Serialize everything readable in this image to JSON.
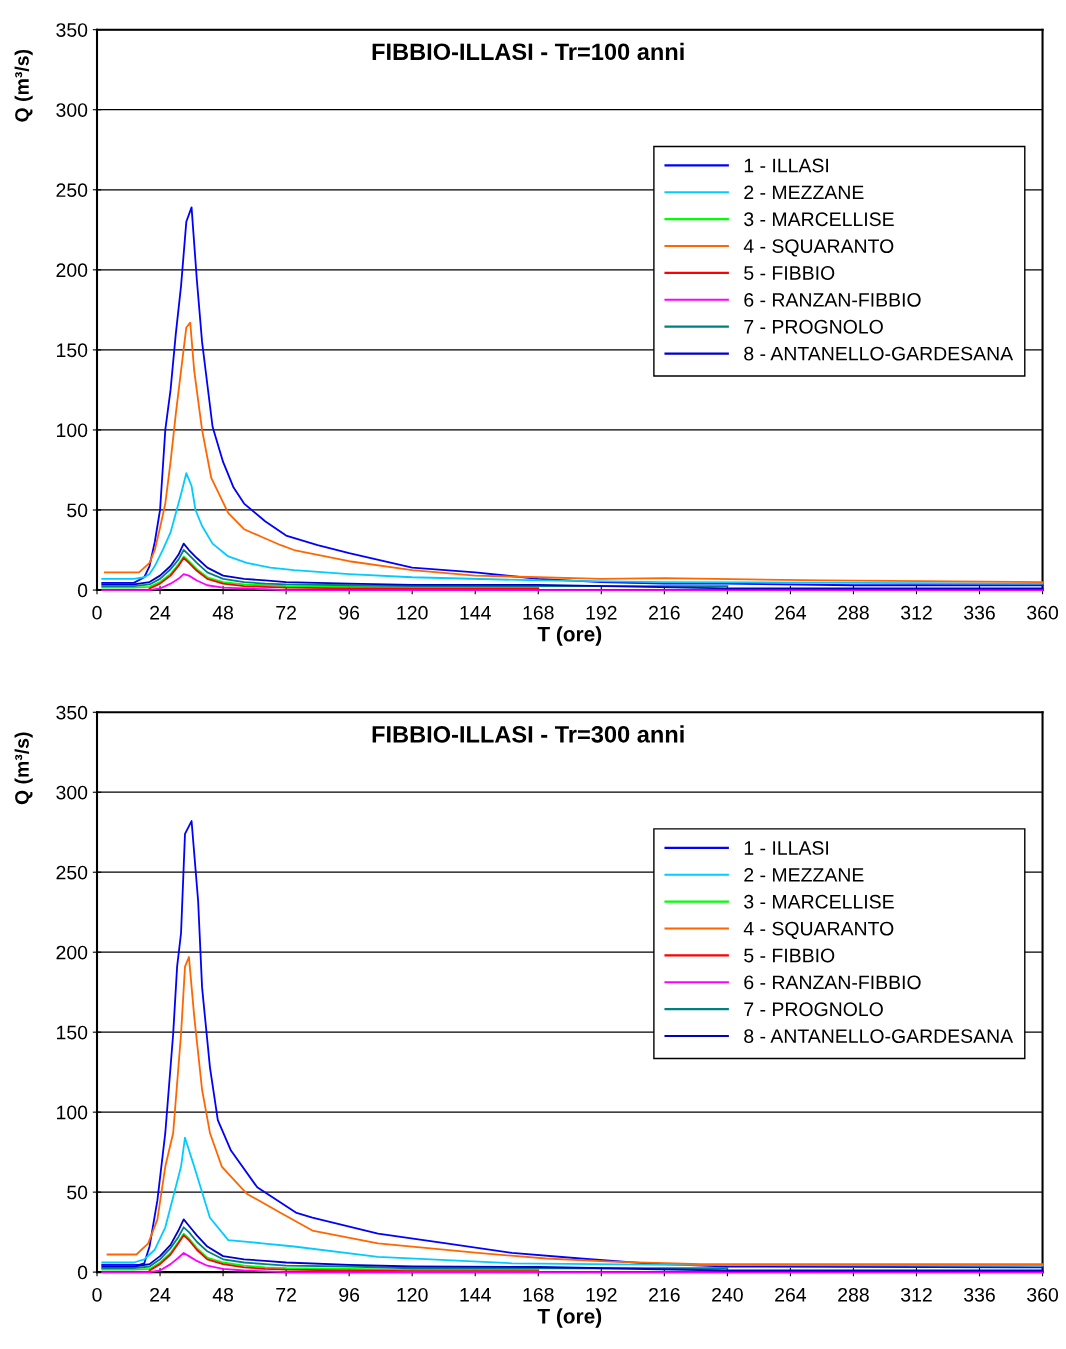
{
  "chart_data": [
    {
      "type": "line",
      "title": "FIBBIO-ILLASI - Tr=100 anni",
      "xlabel": "T (ore)",
      "ylabel": "Q (m³/s)",
      "xlim": [
        0,
        360
      ],
      "xticks": [
        0,
        24,
        48,
        72,
        96,
        120,
        144,
        168,
        192,
        216,
        240,
        264,
        288,
        312,
        336,
        360
      ],
      "ylim": [
        0,
        350
      ],
      "yticks": [
        0,
        50,
        100,
        150,
        200,
        250,
        300,
        350
      ],
      "grid": "y",
      "legend": "top right",
      "marker": "none",
      "line_style": "solid",
      "series": [
        {
          "name": "1 - ILLASI",
          "color": "#0000ff",
          "x": [
            2,
            14,
            18,
            20,
            22,
            24,
            26,
            28,
            30,
            32,
            34,
            36,
            38,
            40,
            44,
            48,
            52,
            56,
            64,
            72,
            84,
            96,
            120,
            144,
            168,
            192,
            216,
            240,
            288,
            360
          ],
          "values": [
            4.5,
            4.5,
            8,
            15,
            30,
            50,
            100,
            125,
            160,
            190,
            230,
            239,
            194,
            155,
            102,
            80,
            64,
            54,
            43,
            34,
            28,
            23,
            14,
            11,
            7,
            5,
            4,
            4,
            3,
            3
          ]
        },
        {
          "name": "2 - MEZZANE",
          "color": "#00ccff",
          "x": [
            2,
            14,
            18,
            20,
            22,
            25,
            28,
            30,
            32,
            34,
            36,
            37.5,
            40,
            44,
            50,
            57,
            66,
            75,
            96,
            120,
            168,
            216,
            360
          ],
          "values": [
            7,
            7,
            8,
            10,
            15,
            25,
            36,
            48,
            60,
            73,
            65,
            50,
            40,
            29,
            21,
            17,
            14,
            12.5,
            10,
            8,
            6,
            5,
            4
          ]
        },
        {
          "name": "3 - MARCELLISE",
          "color": "#00ff00",
          "x": [
            2,
            14,
            20,
            24,
            28,
            31,
            33,
            35,
            38,
            42,
            48,
            56,
            64,
            72,
            96,
            120,
            168
          ],
          "values": [
            1.5,
            1.5,
            2,
            5,
            10,
            16,
            21,
            18,
            13,
            8,
            5,
            3.5,
            3,
            2.5,
            2,
            1.6,
            1.6
          ]
        },
        {
          "name": "4 - SQUARANTO",
          "color": "#ff6600",
          "x": [
            3,
            16,
            18,
            20,
            22,
            24,
            26,
            28,
            30,
            32,
            34,
            35.5,
            37,
            40,
            43.5,
            50,
            56,
            63,
            70,
            75,
            96,
            120,
            144,
            168,
            192,
            216,
            276,
            360
          ],
          "values": [
            11,
            11,
            14,
            17,
            25,
            39,
            54,
            80,
            110,
            137,
            164,
            167,
            137,
            100,
            70,
            48,
            38,
            33,
            28,
            25,
            18,
            12.5,
            9,
            8,
            7,
            7.5,
            6,
            5
          ]
        },
        {
          "name": "5 - FIBBIO",
          "color": "#ff0000",
          "x": [
            20,
            24,
            28,
            31,
            33,
            35,
            38,
            42,
            48,
            56,
            64,
            72,
            96,
            120,
            168
          ],
          "values": [
            1,
            4,
            9,
            15,
            20,
            17,
            12,
            7,
            4,
            2.5,
            2,
            1.5,
            1,
            0.8,
            0.8
          ]
        },
        {
          "name": "6 - RANZAN-FIBBIO",
          "color": "#ff00ff",
          "x": [
            2,
            14,
            20,
            24,
            28,
            31,
            33,
            35,
            38,
            42,
            48,
            56,
            64,
            72,
            96,
            120,
            168,
            240,
            360
          ],
          "values": [
            0,
            0,
            0,
            1,
            4,
            7,
            10,
            9,
            6,
            3,
            1.5,
            1,
            0.5,
            0,
            0,
            0,
            0,
            0,
            0
          ]
        },
        {
          "name": "7 - PROGNOLO",
          "color": "#008080",
          "x": [
            2,
            14,
            20,
            24,
            28,
            31,
            33,
            35,
            38,
            42,
            48,
            56,
            64,
            72,
            96,
            120,
            168,
            240
          ],
          "values": [
            2.5,
            2.5,
            3.5,
            7,
            13,
            19,
            25,
            22,
            17,
            11,
            7,
            5,
            4,
            3.5,
            3,
            2.4,
            2.4,
            2.4
          ]
        },
        {
          "name": "8 - ANTANELLO-GARDESANA",
          "color": "#0000cc",
          "x": [
            2,
            14,
            20,
            24,
            28,
            31,
            33,
            35,
            38,
            42,
            48,
            56,
            64,
            72,
            96,
            120,
            168,
            240,
            360
          ],
          "values": [
            3.5,
            3.5,
            5,
            9,
            15,
            22,
            29,
            25,
            20,
            14,
            9,
            7,
            6,
            5,
            4,
            3.2,
            3.2,
            1,
            1
          ]
        }
      ]
    },
    {
      "type": "line",
      "title": "FIBBIO-ILLASI - Tr=300 anni",
      "xlabel": "T (ore)",
      "ylabel": "Q (m³/s)",
      "xlim": [
        0,
        360
      ],
      "xticks": [
        0,
        24,
        48,
        72,
        96,
        120,
        144,
        168,
        192,
        216,
        240,
        264,
        288,
        312,
        336,
        360
      ],
      "ylim": [
        0,
        350
      ],
      "yticks": [
        0,
        50,
        100,
        150,
        200,
        250,
        300,
        350
      ],
      "grid": "y",
      "legend": "top right",
      "marker": "none",
      "line_style": "solid",
      "series": [
        {
          "name": "1 - ILLASI",
          "color": "#0000ff",
          "x": [
            2,
            16,
            18,
            20,
            23,
            26,
            29,
            30.5,
            32,
            33.5,
            36,
            38.5,
            40,
            43,
            46,
            51,
            61,
            76,
            82,
            107,
            133,
            158,
            184,
            209,
            240,
            360
          ],
          "values": [
            4.5,
            4.5,
            5.5,
            16,
            45,
            87,
            149,
            191,
            212,
            274,
            282,
            232,
            178,
            128,
            95,
            76,
            53,
            37,
            34,
            24,
            18,
            12,
            8.5,
            5.5,
            3.5,
            3
          ]
        },
        {
          "name": "2 - MEZZANE",
          "color": "#00ccff",
          "x": [
            2,
            14,
            18,
            22,
            26,
            29,
            32,
            33.5,
            37,
            43,
            50,
            63,
            75,
            107,
            158,
            220,
            360
          ],
          "values": [
            6,
            6,
            8,
            14,
            28,
            47,
            66,
            84,
            66,
            34,
            20,
            18,
            16,
            9.5,
            5.5,
            4.5,
            4
          ]
        },
        {
          "name": "3 - MARCELLISE",
          "color": "#00ff00",
          "x": [
            2,
            14,
            20,
            24,
            28,
            31,
            33,
            35,
            38,
            42,
            48,
            56,
            64,
            72,
            96,
            120,
            168
          ],
          "values": [
            1.5,
            1.5,
            2,
            6,
            12,
            19,
            24,
            21,
            15,
            9,
            6,
            4,
            3,
            2.5,
            2,
            1.4,
            1.4
          ]
        },
        {
          "name": "4 - SQUARANTO",
          "color": "#ff6600",
          "x": [
            4,
            15,
            19.5,
            23,
            26,
            29,
            32,
            33.5,
            35,
            37,
            40,
            43,
            47.5,
            57,
            70,
            82,
            107,
            145,
            171,
            196,
            230,
            360
          ],
          "values": [
            11,
            11,
            18,
            33,
            66,
            87,
            149,
            191,
            197,
            160,
            114,
            87,
            66,
            49,
            37,
            26,
            18,
            12,
            8.5,
            6.5,
            5,
            5
          ]
        },
        {
          "name": "5 - FIBBIO",
          "color": "#ff0000",
          "x": [
            20,
            24,
            28,
            31,
            33,
            35,
            38,
            42,
            48,
            56,
            64,
            72,
            96,
            120,
            168
          ],
          "values": [
            1,
            5,
            11,
            18,
            23,
            20,
            14,
            8,
            5,
            3,
            2,
            1.5,
            1,
            0.6,
            0.6
          ]
        },
        {
          "name": "6 - RANZAN-FIBBIO",
          "color": "#ff00ff",
          "x": [
            2,
            14,
            20,
            24,
            28,
            31,
            33,
            35,
            38,
            42,
            48,
            56,
            64,
            72,
            96,
            120,
            168,
            240,
            360
          ],
          "values": [
            0,
            0,
            0,
            1,
            5,
            9,
            12,
            10,
            7,
            4,
            2,
            1,
            0.5,
            0,
            0,
            0,
            0,
            0,
            0
          ]
        },
        {
          "name": "7 - PROGNOLO",
          "color": "#008080",
          "x": [
            2,
            14,
            20,
            24,
            28,
            31,
            33,
            35,
            38,
            42,
            48,
            56,
            64,
            72,
            96,
            120,
            168,
            240
          ],
          "values": [
            2.5,
            2.5,
            3.5,
            8,
            15,
            22,
            28,
            25,
            19,
            13,
            8,
            6,
            5,
            4,
            3.5,
            2.4,
            2.4,
            2.4
          ]
        },
        {
          "name": "8 - ANTANELLO-GARDESANA",
          "color": "#0000cc",
          "x": [
            2,
            14,
            20,
            24,
            28,
            31,
            33,
            35,
            38,
            42,
            48,
            56,
            64,
            72,
            96,
            120,
            168,
            240,
            360
          ],
          "values": [
            3.5,
            3.5,
            5,
            10,
            17,
            26,
            33,
            29,
            23,
            16,
            10,
            8,
            7,
            6,
            4.5,
            3.5,
            3.2,
            1,
            1
          ]
        }
      ]
    }
  ]
}
